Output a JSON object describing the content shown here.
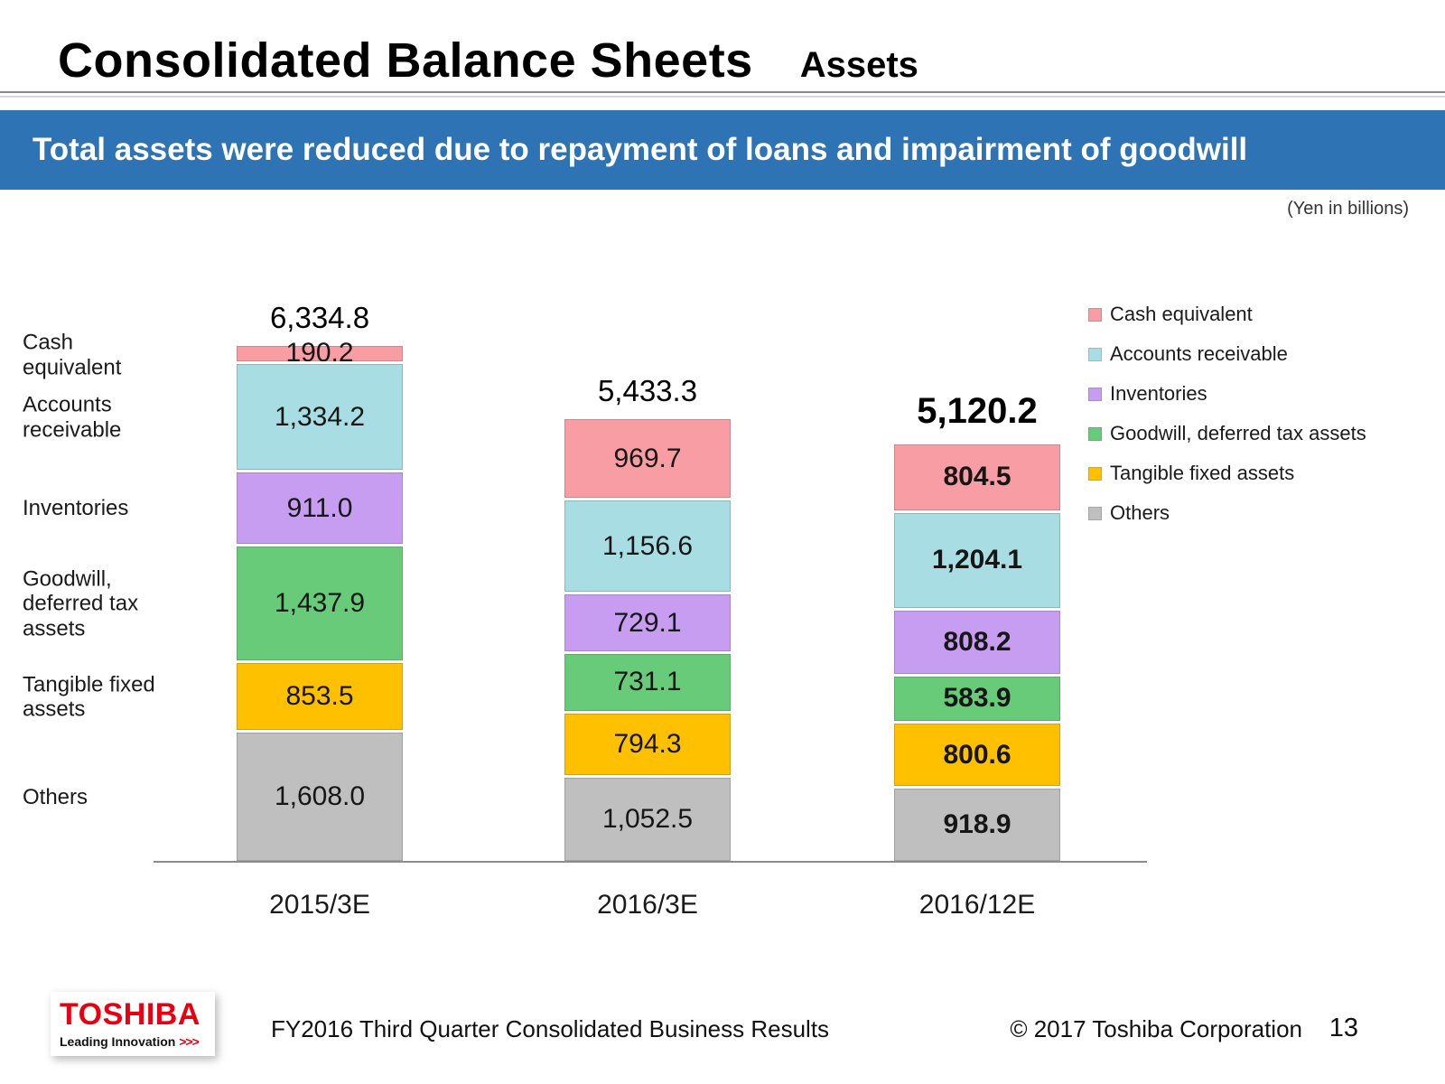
{
  "header": {
    "title": "Consolidated Balance Sheets",
    "subtitle": "Assets",
    "banner": "Total assets were reduced due to repayment of loans and impairment of goodwill",
    "unit_note": "(Yen in billions)"
  },
  "colors": {
    "banner_blue": "#2E74B5",
    "toshiba_red": "#E60012"
  },
  "chart_data": {
    "type": "bar",
    "stacked": true,
    "unit": "Yen in billions",
    "categories": [
      "2015/3E",
      "2016/3E",
      "2016/12E"
    ],
    "totals": [
      "6,334.8",
      "5,433.3",
      "5,120.2"
    ],
    "emphasis_index": 2,
    "series": [
      {
        "name": "Cash equivalent",
        "color": "#F89DA3",
        "values": [
          190.2,
          969.7,
          804.5
        ],
        "labels": [
          "190.2",
          "969.7",
          "804.5"
        ]
      },
      {
        "name": "Accounts receivable",
        "color": "#A8DEE3",
        "values": [
          1334.2,
          1156.6,
          1204.1
        ],
        "labels": [
          "1,334.2",
          "1,156.6",
          "1,204.1"
        ]
      },
      {
        "name": "Inventories",
        "color": "#C79DF2",
        "values": [
          911.0,
          729.1,
          808.2
        ],
        "labels": [
          "911.0",
          "729.1",
          "808.2"
        ]
      },
      {
        "name": "Goodwill, deferred tax assets",
        "color": "#67CB79",
        "values": [
          1437.9,
          731.1,
          583.9
        ],
        "labels": [
          "1,437.9",
          "731.1",
          "583.9"
        ]
      },
      {
        "name": "Tangible fixed assets",
        "color": "#FFC000",
        "values": [
          853.5,
          794.3,
          800.6
        ],
        "labels": [
          "853.5",
          "794.3",
          "800.6"
        ]
      },
      {
        "name": "Others",
        "color": "#BFBFBF",
        "values": [
          1608.0,
          1052.5,
          918.9
        ],
        "labels": [
          "1,608.0",
          "1,052.5",
          "918.9"
        ]
      }
    ],
    "row_labels": [
      "Cash\nequivalent",
      "Accounts\nreceivable",
      "Inventories",
      "Goodwill,\ndeferred tax\nassets",
      "Tangible fixed\nassets",
      "Others"
    ],
    "legend_position": "right"
  },
  "footer": {
    "logo_text": "TOSHIBA",
    "logo_tagline": "Leading Innovation",
    "logo_chevrons": ">>>",
    "caption": "FY2016 Third Quarter Consolidated Business Results",
    "copyright": "© 2017 Toshiba Corporation",
    "page_number": "13"
  }
}
